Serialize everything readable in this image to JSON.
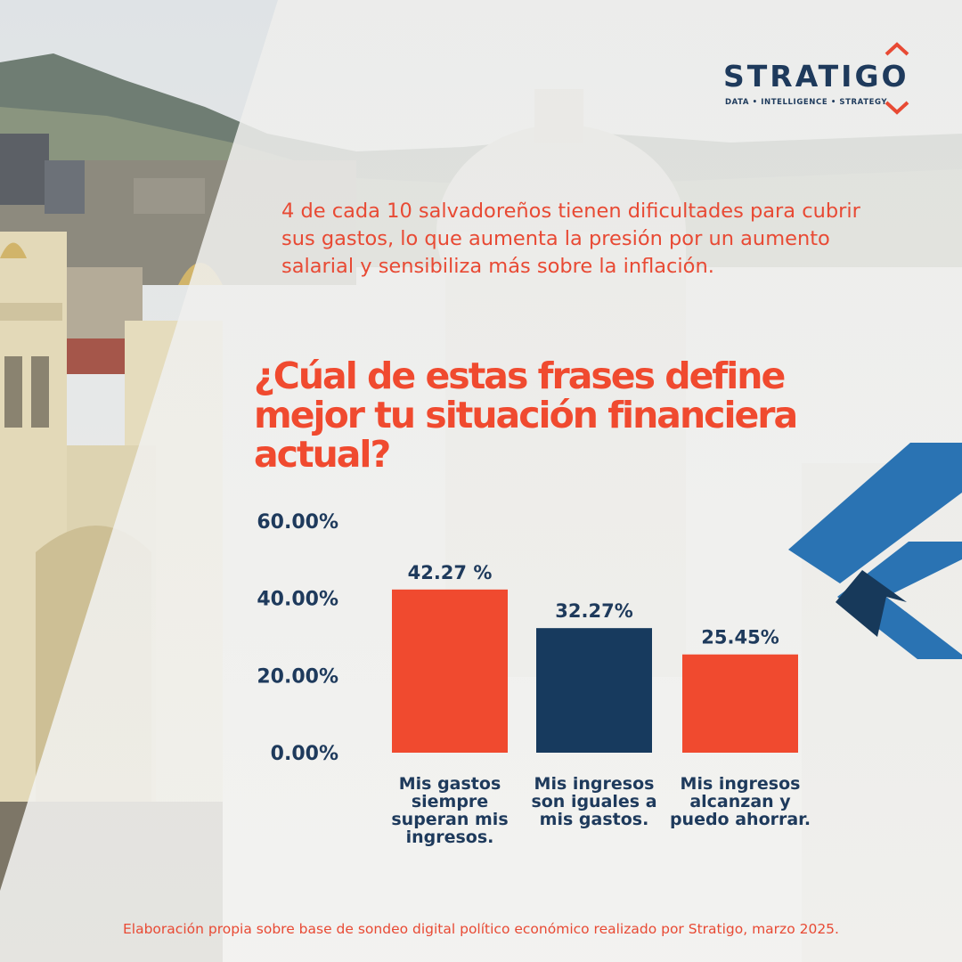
{
  "brand": {
    "name": "STRATIGO",
    "tagline": "DATA • INTELLIGENCE • STRATEGY",
    "colors": {
      "navy": "#1e3a5c",
      "orange": "#f04a2f",
      "blue": "#2a73b3"
    }
  },
  "intro_text": "4 de cada 10 salvadoreños tienen dificultades para cubrir sus gastos, lo que aumenta la presión por un aumento salarial y sensibiliza más sobre la inflación.",
  "question": "¿Cúal de estas frases define mejor tu situación financiera actual?",
  "chart_data": {
    "type": "bar",
    "categories": [
      "Mis gastos siempre superan mis ingresos.",
      "Mis ingresos son iguales a mis gastos.",
      "Mis ingresos alcanzan y puedo ahorrar."
    ],
    "values": [
      42.27,
      32.27,
      25.45
    ],
    "data_labels": [
      "42.27 %",
      "32.27%",
      "25.45%"
    ],
    "bar_colors": [
      "#f04a2f",
      "#173a5e",
      "#f04a2f"
    ],
    "yticks": [
      "0.00%",
      "20.00%",
      "40.00%",
      "60.00%"
    ],
    "ylim": [
      0,
      60
    ],
    "grid": false,
    "legend": "none"
  },
  "source_note": "Elaboración propia sobre base de sondeo digital político económico realizado por Stratigo,  marzo 2025."
}
